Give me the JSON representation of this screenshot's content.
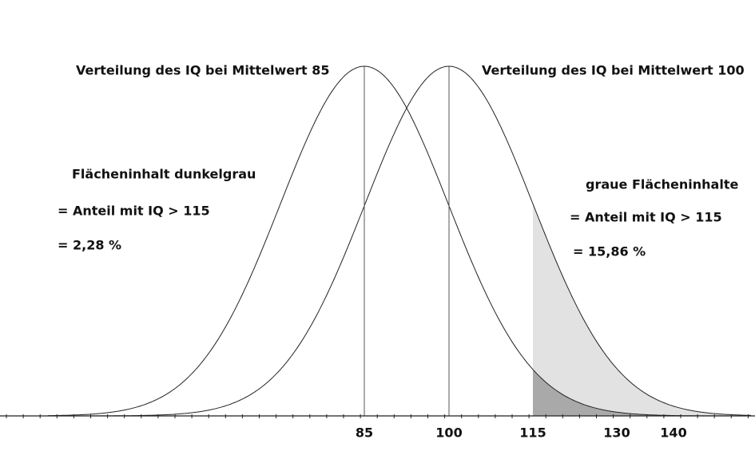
{
  "curve_labels": [
    "Verteilung des IQ bei Mittelwert 85",
    "Verteilung des IQ bei Mittelwert 100"
  ],
  "left_note": [
    "Flächeninhalt dunkelgrau",
    "= Anteil mit IQ > 115",
    "= 2,28 %"
  ],
  "right_note": [
    "graue Flächeninhalte",
    "= Anteil mit IQ > 115",
    "= 15,86 %"
  ],
  "axis_labels": [
    "85",
    "100",
    "115",
    "130",
    "140"
  ]
}
